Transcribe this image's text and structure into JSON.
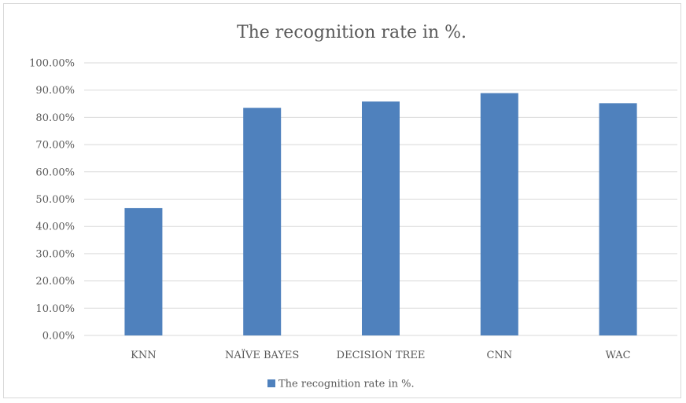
{
  "chart_data": {
    "type": "bar",
    "title": "The recognition rate in %.",
    "categories": [
      "KNN",
      "NAÏVE BAYES",
      "DECISION TREE",
      "CNN",
      "WAC"
    ],
    "series": [
      {
        "name": "The recognition rate in %.",
        "values": [
          0.467,
          0.835,
          0.858,
          0.889,
          0.852
        ],
        "color": "#4f81bd"
      }
    ],
    "xlabel": "",
    "ylabel": "",
    "ylim": [
      0,
      1.0
    ],
    "yticks": [
      "0.00%",
      "10.00%",
      "20.00%",
      "30.00%",
      "40.00%",
      "50.00%",
      "60.00%",
      "70.00%",
      "80.00%",
      "90.00%",
      "100.00%"
    ],
    "grid": true,
    "legend": "bottom",
    "gridline_color": "#d9d9d9",
    "text_color": "#595959"
  }
}
